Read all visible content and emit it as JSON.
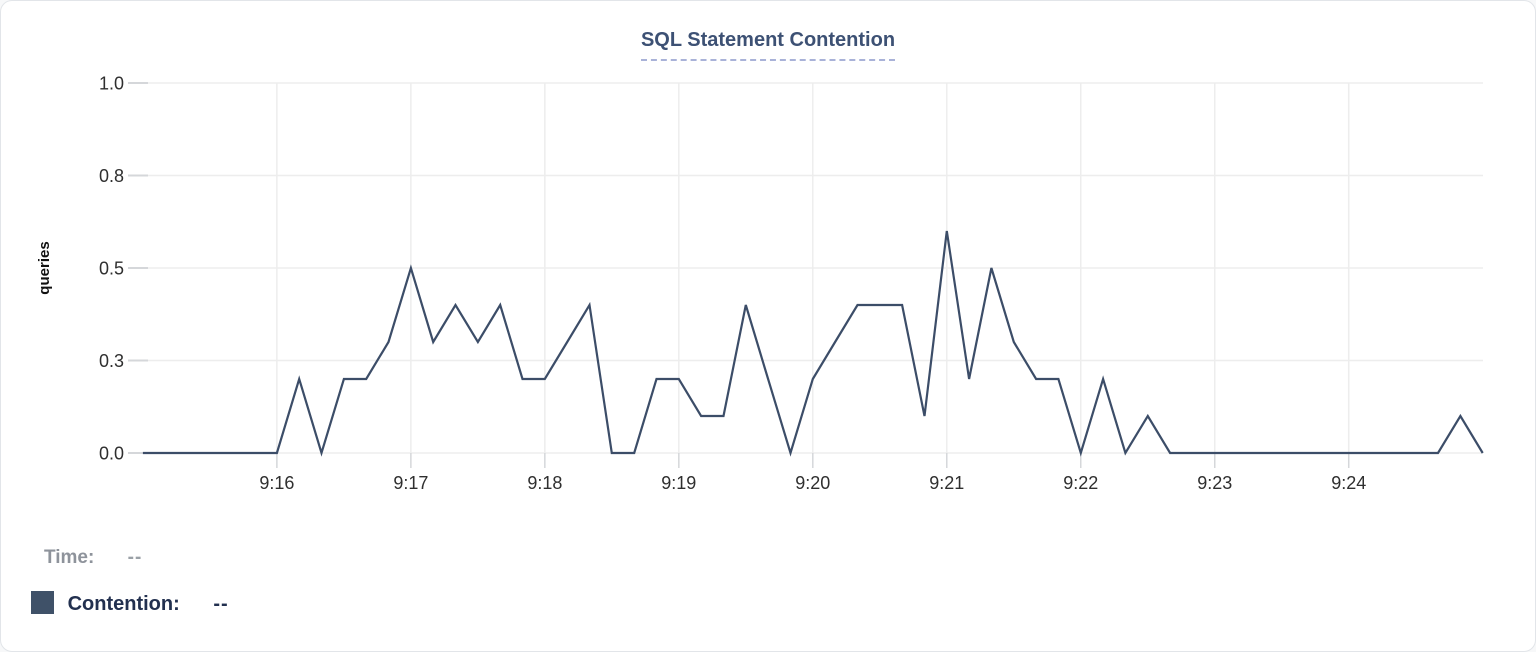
{
  "header": {
    "title": "SQL Statement Contention"
  },
  "chart_data": {
    "type": "line",
    "title": "SQL Statement Contention",
    "xlabel": "",
    "ylabel": "queries",
    "ylim": [
      0,
      1
    ],
    "grid": true,
    "x_domain": [
      "9:15:00",
      "9:25:00"
    ],
    "x_ticks": [
      "9:16",
      "9:17",
      "9:18",
      "9:19",
      "9:20",
      "9:21",
      "9:22",
      "9:23",
      "9:24"
    ],
    "y_ticks": [
      {
        "value": 0,
        "label": "0.0"
      },
      {
        "value": 0.25,
        "label": "0.3"
      },
      {
        "value": 0.5,
        "label": "0.5"
      },
      {
        "value": 0.75,
        "label": "0.8"
      },
      {
        "value": 1,
        "label": "1.0"
      }
    ],
    "legend_position": "bottom-left",
    "series": [
      {
        "name": "Contention",
        "color": "#3c4d68",
        "points": [
          [
            "9:15:00",
            0
          ],
          [
            "9:15:10",
            0
          ],
          [
            "9:15:20",
            0
          ],
          [
            "9:15:30",
            0
          ],
          [
            "9:15:40",
            0
          ],
          [
            "9:15:50",
            0
          ],
          [
            "9:16:00",
            0
          ],
          [
            "9:16:10",
            0.2
          ],
          [
            "9:16:20",
            0
          ],
          [
            "9:16:30",
            0.2
          ],
          [
            "9:16:40",
            0.2
          ],
          [
            "9:16:50",
            0.3
          ],
          [
            "9:17:00",
            0.5
          ],
          [
            "9:17:10",
            0.3
          ],
          [
            "9:17:20",
            0.4
          ],
          [
            "9:17:30",
            0.3
          ],
          [
            "9:17:40",
            0.4
          ],
          [
            "9:17:50",
            0.2
          ],
          [
            "9:18:00",
            0.2
          ],
          [
            "9:18:10",
            0.3
          ],
          [
            "9:18:20",
            0.4
          ],
          [
            "9:18:30",
            0
          ],
          [
            "9:18:40",
            0
          ],
          [
            "9:18:50",
            0.2
          ],
          [
            "9:19:00",
            0.2
          ],
          [
            "9:19:10",
            0.1
          ],
          [
            "9:19:20",
            0.1
          ],
          [
            "9:19:30",
            0.4
          ],
          [
            "9:19:40",
            0.2
          ],
          [
            "9:19:50",
            0
          ],
          [
            "9:20:00",
            0.2
          ],
          [
            "9:20:10",
            0.3
          ],
          [
            "9:20:20",
            0.4
          ],
          [
            "9:20:30",
            0.4
          ],
          [
            "9:20:40",
            0.4
          ],
          [
            "9:20:50",
            0.1
          ],
          [
            "9:21:00",
            0.6
          ],
          [
            "9:21:10",
            0.2
          ],
          [
            "9:21:20",
            0.5
          ],
          [
            "9:21:30",
            0.3
          ],
          [
            "9:21:40",
            0.2
          ],
          [
            "9:21:50",
            0.2
          ],
          [
            "9:22:00",
            0
          ],
          [
            "9:22:10",
            0.2
          ],
          [
            "9:22:20",
            0
          ],
          [
            "9:22:30",
            0.1
          ],
          [
            "9:22:40",
            0
          ],
          [
            "9:22:50",
            0
          ],
          [
            "9:23:00",
            0
          ],
          [
            "9:23:10",
            0
          ],
          [
            "9:23:20",
            0
          ],
          [
            "9:23:30",
            0
          ],
          [
            "9:23:40",
            0
          ],
          [
            "9:23:50",
            0
          ],
          [
            "9:24:00",
            0
          ],
          [
            "9:24:10",
            0
          ],
          [
            "9:24:20",
            0
          ],
          [
            "9:24:30",
            0
          ],
          [
            "9:24:40",
            0
          ],
          [
            "9:24:50",
            0.1
          ],
          [
            "9:25:00",
            0
          ]
        ]
      }
    ]
  },
  "legend": {
    "time_label": "Time:",
    "time_value": "--",
    "contention_label": "Contention:",
    "contention_value": "--",
    "swatch_color": "#3f5168"
  },
  "colors": {
    "line": "#3c4d68",
    "gridline": "#ededed",
    "tick": "#d5d7da",
    "axis_text": "#2f2f2f",
    "ylabel_text": "#111111",
    "title": "#3d5174",
    "title_underline": "#a9b2d8"
  }
}
